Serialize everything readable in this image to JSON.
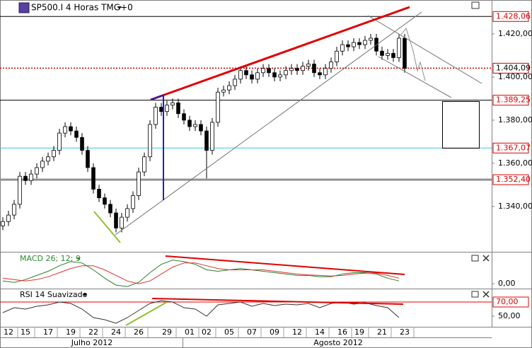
{
  "chart_data": [
    {
      "type": "candlestick",
      "title": "SP500.I 4 Horas TMG+0",
      "x": [
        0,
        1,
        2,
        3,
        4,
        5,
        6,
        7,
        8,
        9,
        10,
        11,
        12,
        13,
        14,
        15,
        16,
        17,
        18,
        19,
        20,
        21,
        22,
        23,
        24,
        25,
        26,
        27,
        28,
        29,
        30,
        31,
        32,
        33,
        34,
        35,
        36,
        37,
        38,
        39,
        40,
        41,
        42,
        43,
        44,
        45,
        46,
        47,
        48,
        49,
        50,
        51,
        52,
        53,
        54,
        55,
        56,
        57,
        58,
        59,
        60,
        61,
        62,
        63,
        64,
        65,
        66,
        67,
        68,
        69,
        70,
        71
      ],
      "open": [
        1331,
        1333,
        1336,
        1341,
        1354,
        1352,
        1355,
        1358,
        1361,
        1363,
        1366,
        1374,
        1377,
        1375,
        1372,
        1366,
        1358,
        1348,
        1344,
        1341,
        1337,
        1330,
        1335,
        1339,
        1345,
        1356,
        1363,
        1378,
        1386,
        1384,
        1387,
        1388,
        1383,
        1380,
        1377,
        1378,
        1375,
        1366,
        1379,
        1393,
        1394,
        1396,
        1399,
        1403,
        1401,
        1399,
        1402,
        1404,
        1402,
        1400,
        1401,
        1403,
        1404,
        1403,
        1405,
        1406,
        1402,
        1401,
        1404,
        1407,
        1412,
        1415,
        1414,
        1416,
        1415,
        1417,
        1418,
        1412,
        1410,
        1411,
        1409,
        1418
      ],
      "high": [
        1335,
        1338,
        1343,
        1356,
        1356,
        1357,
        1360,
        1363,
        1365,
        1368,
        1376,
        1379,
        1379,
        1377,
        1374,
        1368,
        1360,
        1350,
        1346,
        1343,
        1339,
        1337,
        1341,
        1347,
        1358,
        1365,
        1380,
        1388,
        1388,
        1389,
        1390,
        1390,
        1385,
        1382,
        1380,
        1380,
        1377,
        1381,
        1395,
        1396,
        1398,
        1401,
        1405,
        1405,
        1403,
        1404,
        1406,
        1406,
        1404,
        1403,
        1405,
        1406,
        1406,
        1407,
        1408,
        1408,
        1404,
        1406,
        1409,
        1414,
        1417,
        1417,
        1418,
        1418,
        1419,
        1420,
        1420,
        1414,
        1413,
        1413,
        1420,
        1420
      ],
      "low": [
        1329,
        1331,
        1334,
        1339,
        1350,
        1350,
        1353,
        1356,
        1359,
        1361,
        1364,
        1372,
        1373,
        1370,
        1364,
        1356,
        1346,
        1342,
        1339,
        1335,
        1328,
        1328,
        1333,
        1337,
        1343,
        1354,
        1361,
        1376,
        1382,
        1382,
        1385,
        1381,
        1378,
        1375,
        1375,
        1373,
        1353,
        1364,
        1377,
        1391,
        1392,
        1394,
        1397,
        1399,
        1397,
        1397,
        1400,
        1400,
        1398,
        1398,
        1399,
        1401,
        1401,
        1401,
        1403,
        1400,
        1399,
        1399,
        1402,
        1405,
        1410,
        1412,
        1412,
        1413,
        1413,
        1415,
        1410,
        1408,
        1408,
        1407,
        1407,
        1402
      ],
      "close": [
        1333,
        1336,
        1341,
        1354,
        1352,
        1355,
        1358,
        1361,
        1363,
        1366,
        1374,
        1377,
        1375,
        1372,
        1366,
        1358,
        1348,
        1344,
        1341,
        1337,
        1330,
        1335,
        1339,
        1345,
        1356,
        1363,
        1378,
        1386,
        1384,
        1387,
        1388,
        1383,
        1380,
        1377,
        1378,
        1375,
        1366,
        1379,
        1393,
        1394,
        1396,
        1399,
        1403,
        1401,
        1399,
        1402,
        1404,
        1402,
        1400,
        1401,
        1403,
        1404,
        1403,
        1405,
        1406,
        1402,
        1401,
        1404,
        1407,
        1412,
        1415,
        1414,
        1416,
        1415,
        1417,
        1418,
        1412,
        1410,
        1411,
        1409,
        1418,
        1404
      ],
      "up_color": "#ffffff",
      "down_color": "#000000",
      "xlim": [
        -0.5,
        86.375
      ],
      "ylim": [
        1319.3,
        1435.7
      ],
      "yticks": [
        {
          "value": 1420,
          "label": "1.420,00"
        },
        {
          "value": 1400,
          "label": "1.400,00"
        },
        {
          "value": 1380,
          "label": "1.380,00"
        },
        {
          "value": 1360,
          "label": "1.360,00"
        },
        {
          "value": 1340,
          "label": "1.340,00"
        }
      ],
      "levels": [
        {
          "value": 1428.06,
          "label": "1.428,06",
          "color": "#000000",
          "text_color": "#e00000"
        },
        {
          "value": 1404.09,
          "label": "1.404,09",
          "color": "#d00000",
          "text_color": "#000000",
          "dash": true
        },
        {
          "value": 1389.25,
          "label": "1.389,25",
          "color": "#000000",
          "text_color": "#e00000"
        },
        {
          "value": 1367.07,
          "label": "1.367,07",
          "color": "#3cc8d8",
          "text_color": "#e00000"
        },
        {
          "value": 1352.4,
          "label": "1.352,40",
          "color": "#909090",
          "text_color": "#e00000",
          "width": 3
        }
      ],
      "xticks": [
        {
          "value": 1,
          "label": "12"
        },
        {
          "value": 4,
          "label": "15"
        },
        {
          "value": 8,
          "label": "17"
        },
        {
          "value": 12,
          "label": "19"
        },
        {
          "value": 16,
          "label": "22"
        },
        {
          "value": 20,
          "label": "24"
        },
        {
          "value": 24,
          "label": "26"
        },
        {
          "value": 29,
          "label": "29"
        },
        {
          "value": 33,
          "label": "01"
        },
        {
          "value": 36,
          "label": "02"
        },
        {
          "value": 40,
          "label": "05"
        },
        {
          "value": 44,
          "label": "07"
        },
        {
          "value": 48,
          "label": "09"
        },
        {
          "value": 52,
          "label": "12"
        },
        {
          "value": 56,
          "label": "14"
        },
        {
          "value": 60,
          "label": "16"
        },
        {
          "value": 63,
          "label": "19"
        },
        {
          "value": 67,
          "label": "21"
        },
        {
          "value": 71,
          "label": "23"
        }
      ],
      "months": [
        "Julho 2012",
        "Agosto 2012"
      ]
    },
    {
      "type": "line",
      "title": "MACD 26; 12; 9",
      "x": [
        0,
        2,
        4,
        6,
        8,
        10,
        12,
        14,
        16,
        18,
        20,
        22,
        24,
        26,
        28,
        30,
        32,
        34,
        36,
        38,
        40,
        42,
        44,
        46,
        48,
        50,
        52,
        54,
        56,
        58,
        60,
        62,
        64,
        66,
        68,
        70
      ],
      "series": [
        {
          "color": "#2e7d2e",
          "values": [
            1,
            0.5,
            1.5,
            3,
            4.5,
            6.5,
            8,
            7.5,
            5,
            2,
            -0.5,
            -1,
            0.5,
            4,
            7,
            8.5,
            8,
            7,
            5,
            4.5,
            5,
            5.5,
            5,
            4.5,
            4,
            3.5,
            3,
            3,
            2.5,
            2.5,
            3.5,
            4,
            4,
            3.5,
            2,
            1
          ]
        },
        {
          "color": "#e03030",
          "values": [
            2,
            1.5,
            1,
            1.5,
            2.5,
            4,
            5.5,
            6.5,
            6.5,
            5,
            3,
            1,
            0,
            1,
            3.5,
            6,
            7.5,
            7.5,
            6.5,
            5.5,
            5,
            5,
            5,
            5,
            4.5,
            4,
            3.5,
            3.2,
            3,
            2.8,
            3,
            3.5,
            3.8,
            3.8,
            3,
            2
          ]
        }
      ],
      "xlim": [
        -0.5,
        86.375
      ],
      "ylim": [
        -1.5,
        10.5
      ],
      "yticks": [
        {
          "value": 0,
          "label": "0,00"
        }
      ]
    },
    {
      "type": "line",
      "title": "RSI 14 Suavizado",
      "x": [
        0,
        2,
        4,
        6,
        8,
        10,
        12,
        14,
        16,
        18,
        20,
        22,
        24,
        26,
        28,
        30,
        32,
        34,
        36,
        38,
        40,
        42,
        44,
        46,
        48,
        50,
        52,
        54,
        56,
        58,
        60,
        62,
        64,
        66,
        68,
        70
      ],
      "series": [
        {
          "color": "#333333",
          "values": [
            55,
            62,
            60,
            64,
            66,
            70,
            68,
            60,
            48,
            45,
            40,
            48,
            58,
            68,
            72,
            70,
            62,
            60,
            50,
            66,
            68,
            70,
            64,
            68,
            65,
            67,
            66,
            68,
            62,
            68,
            70,
            67,
            69,
            65,
            62,
            48
          ]
        }
      ],
      "xlim": [
        -0.5,
        86.375
      ],
      "ylim": [
        37,
        85
      ],
      "yticks": [
        {
          "value": 50,
          "label": "50,00"
        }
      ],
      "levels": [
        {
          "value": 70,
          "label": "70,00",
          "color": "#e00000",
          "text_color": "#e00000"
        }
      ]
    }
  ]
}
